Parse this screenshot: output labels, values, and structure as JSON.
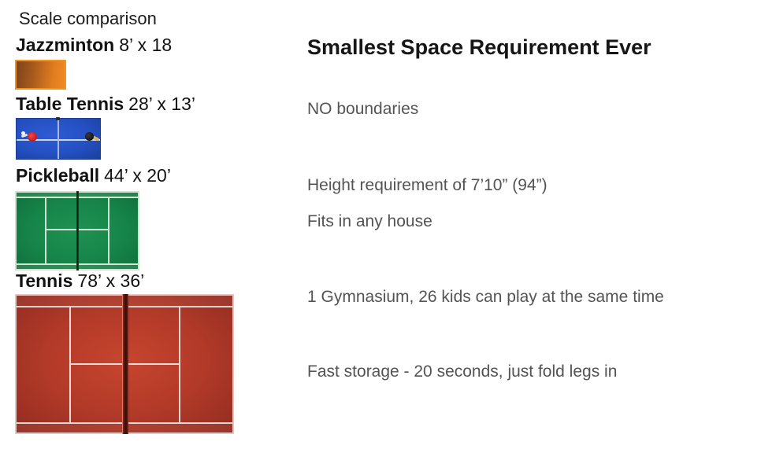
{
  "left_panel": {
    "title": "Scale comparison",
    "courts": [
      {
        "name": "Jazzminton",
        "dimensions": "8’ x 18"
      },
      {
        "name": "Table Tennis",
        "dimensions": "28’ x 13’"
      },
      {
        "name": "Pickleball",
        "dimensions": "44’ x 20’"
      },
      {
        "name": "Tennis",
        "dimensions": "78’ x 36’"
      }
    ]
  },
  "right_panel": {
    "heading": "Smallest Space Requirement Ever",
    "bullets": [
      "NO boundaries",
      "Height requirement of 7’10” (94”)",
      "Fits in any house",
      "1 Gymnasium, 26 kids can play at the same time",
      "Fast storage - 20 seconds, just fold legs in"
    ]
  },
  "colors": {
    "jazzminton_orange": "#e8821f",
    "table_tennis_blue": "#2450c2",
    "pickleball_green": "#178549",
    "tennis_red": "#b23a28"
  }
}
